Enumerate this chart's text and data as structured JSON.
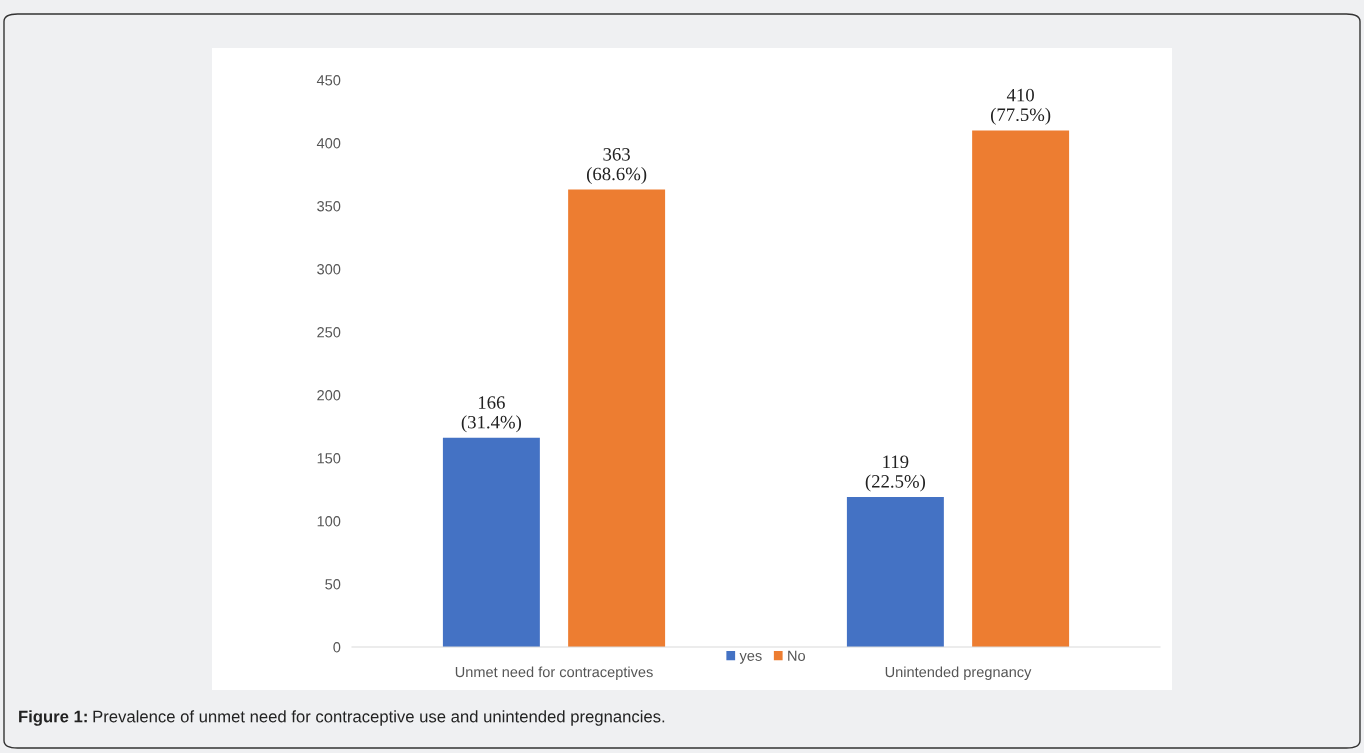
{
  "chart_data": {
    "type": "bar",
    "categories": [
      "Unmet need for contraceptives",
      "Unintended pregnancy"
    ],
    "series": [
      {
        "name": "yes",
        "color": "#4472c4",
        "values": [
          166,
          119
        ],
        "value_labels": [
          "166\n(31.4%)",
          "119\n(22.5%)"
        ]
      },
      {
        "name": "No",
        "color": "#ed7d31",
        "values": [
          363,
          410
        ],
        "value_labels": [
          "363\n(68.6%)",
          "410\n(77.5%)"
        ]
      }
    ],
    "ylim": [
      0,
      450
    ],
    "yticks": [
      0,
      50,
      100,
      150,
      200,
      250,
      300,
      350,
      400,
      450
    ],
    "grid": false,
    "legend": "bottom",
    "annotations": [
      "Figure 1:",
      "Prevalence of unmet need for contraceptive use and unintended pregnancies."
    ]
  }
}
